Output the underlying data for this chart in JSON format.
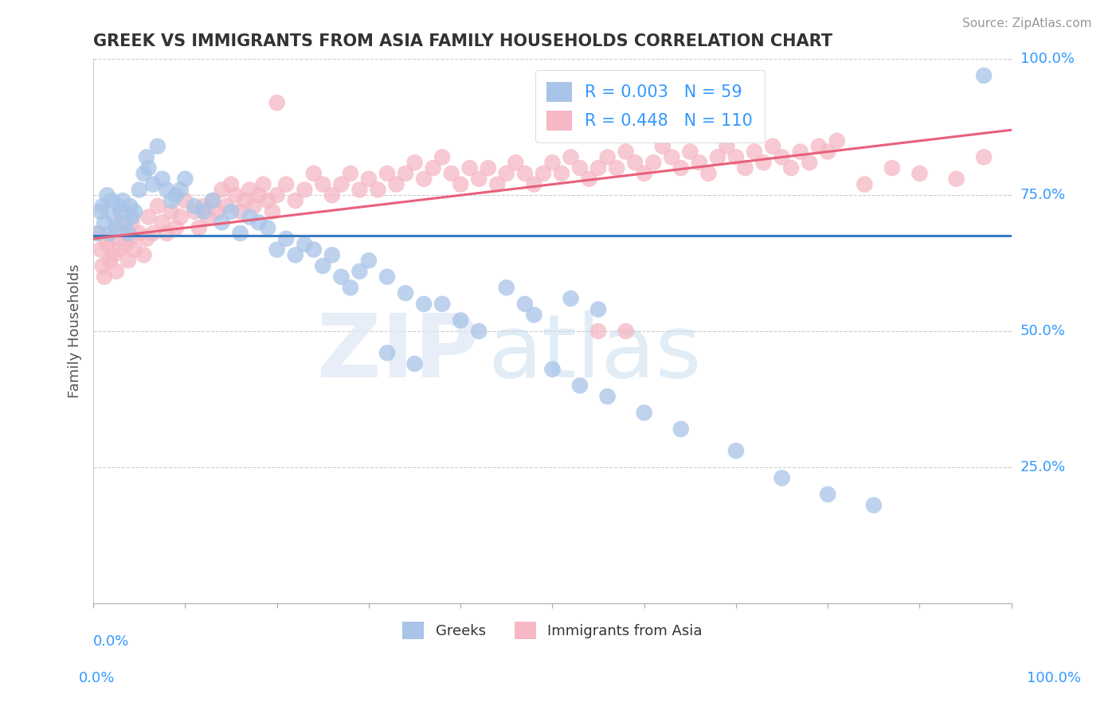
{
  "title": "GREEK VS IMMIGRANTS FROM ASIA FAMILY HOUSEHOLDS CORRELATION CHART",
  "source": "Source: ZipAtlas.com",
  "ylabel": "Family Households",
  "xlim": [
    0.0,
    1.0
  ],
  "ylim": [
    0.0,
    1.0
  ],
  "yticks": [
    0.25,
    0.5,
    0.75,
    1.0
  ],
  "ytick_labels": [
    "25.0%",
    "50.0%",
    "75.0%",
    "100.0%"
  ],
  "blue_color": "#a8c4e8",
  "pink_color": "#f5b8c4",
  "line_blue": "#3a7abf",
  "line_pink": "#e8607a",
  "title_color": "#333333",
  "source_color": "#999999",
  "axis_label_color": "#3399ff",
  "background_color": "#ffffff",
  "grid_color": "#cccccc",
  "blue_scatter": [
    [
      0.005,
      0.68
    ],
    [
      0.008,
      0.72
    ],
    [
      0.01,
      0.73
    ],
    [
      0.012,
      0.7
    ],
    [
      0.015,
      0.75
    ],
    [
      0.018,
      0.68
    ],
    [
      0.02,
      0.74
    ],
    [
      0.022,
      0.71
    ],
    [
      0.025,
      0.69
    ],
    [
      0.028,
      0.73
    ],
    [
      0.03,
      0.72
    ],
    [
      0.032,
      0.74
    ],
    [
      0.035,
      0.7
    ],
    [
      0.038,
      0.68
    ],
    [
      0.04,
      0.73
    ],
    [
      0.042,
      0.71
    ],
    [
      0.045,
      0.72
    ],
    [
      0.05,
      0.76
    ],
    [
      0.055,
      0.79
    ],
    [
      0.058,
      0.82
    ],
    [
      0.06,
      0.8
    ],
    [
      0.065,
      0.77
    ],
    [
      0.07,
      0.84
    ],
    [
      0.075,
      0.78
    ],
    [
      0.08,
      0.76
    ],
    [
      0.085,
      0.74
    ],
    [
      0.09,
      0.75
    ],
    [
      0.095,
      0.76
    ],
    [
      0.1,
      0.78
    ],
    [
      0.11,
      0.73
    ],
    [
      0.12,
      0.72
    ],
    [
      0.13,
      0.74
    ],
    [
      0.14,
      0.7
    ],
    [
      0.15,
      0.72
    ],
    [
      0.16,
      0.68
    ],
    [
      0.17,
      0.71
    ],
    [
      0.18,
      0.7
    ],
    [
      0.19,
      0.69
    ],
    [
      0.2,
      0.65
    ],
    [
      0.21,
      0.67
    ],
    [
      0.22,
      0.64
    ],
    [
      0.23,
      0.66
    ],
    [
      0.24,
      0.65
    ],
    [
      0.25,
      0.62
    ],
    [
      0.26,
      0.64
    ],
    [
      0.27,
      0.6
    ],
    [
      0.28,
      0.58
    ],
    [
      0.29,
      0.61
    ],
    [
      0.3,
      0.63
    ],
    [
      0.32,
      0.6
    ],
    [
      0.34,
      0.57
    ],
    [
      0.36,
      0.55
    ],
    [
      0.38,
      0.55
    ],
    [
      0.4,
      0.52
    ],
    [
      0.42,
      0.5
    ],
    [
      0.45,
      0.58
    ],
    [
      0.47,
      0.55
    ],
    [
      0.5,
      0.43
    ],
    [
      0.53,
      0.4
    ],
    [
      0.56,
      0.38
    ],
    [
      0.6,
      0.35
    ],
    [
      0.64,
      0.32
    ],
    [
      0.7,
      0.28
    ],
    [
      0.75,
      0.23
    ],
    [
      0.8,
      0.2
    ],
    [
      0.85,
      0.18
    ],
    [
      0.52,
      0.56
    ],
    [
      0.55,
      0.54
    ],
    [
      0.48,
      0.53
    ],
    [
      0.32,
      0.46
    ],
    [
      0.35,
      0.44
    ],
    [
      0.97,
      0.97
    ]
  ],
  "pink_scatter": [
    [
      0.005,
      0.68
    ],
    [
      0.008,
      0.65
    ],
    [
      0.01,
      0.62
    ],
    [
      0.012,
      0.6
    ],
    [
      0.015,
      0.66
    ],
    [
      0.018,
      0.63
    ],
    [
      0.02,
      0.67
    ],
    [
      0.022,
      0.64
    ],
    [
      0.025,
      0.61
    ],
    [
      0.028,
      0.65
    ],
    [
      0.03,
      0.7
    ],
    [
      0.032,
      0.68
    ],
    [
      0.035,
      0.66
    ],
    [
      0.038,
      0.63
    ],
    [
      0.04,
      0.67
    ],
    [
      0.042,
      0.7
    ],
    [
      0.045,
      0.65
    ],
    [
      0.05,
      0.68
    ],
    [
      0.055,
      0.64
    ],
    [
      0.058,
      0.67
    ],
    [
      0.06,
      0.71
    ],
    [
      0.065,
      0.68
    ],
    [
      0.07,
      0.73
    ],
    [
      0.075,
      0.7
    ],
    [
      0.08,
      0.68
    ],
    [
      0.085,
      0.72
    ],
    [
      0.09,
      0.69
    ],
    [
      0.095,
      0.71
    ],
    [
      0.1,
      0.74
    ],
    [
      0.11,
      0.72
    ],
    [
      0.115,
      0.69
    ],
    [
      0.12,
      0.73
    ],
    [
      0.125,
      0.71
    ],
    [
      0.13,
      0.74
    ],
    [
      0.135,
      0.72
    ],
    [
      0.14,
      0.76
    ],
    [
      0.145,
      0.73
    ],
    [
      0.15,
      0.77
    ],
    [
      0.155,
      0.75
    ],
    [
      0.16,
      0.72
    ],
    [
      0.165,
      0.74
    ],
    [
      0.17,
      0.76
    ],
    [
      0.175,
      0.73
    ],
    [
      0.18,
      0.75
    ],
    [
      0.185,
      0.77
    ],
    [
      0.19,
      0.74
    ],
    [
      0.195,
      0.72
    ],
    [
      0.2,
      0.75
    ],
    [
      0.21,
      0.77
    ],
    [
      0.22,
      0.74
    ],
    [
      0.23,
      0.76
    ],
    [
      0.24,
      0.79
    ],
    [
      0.25,
      0.77
    ],
    [
      0.26,
      0.75
    ],
    [
      0.27,
      0.77
    ],
    [
      0.28,
      0.79
    ],
    [
      0.29,
      0.76
    ],
    [
      0.3,
      0.78
    ],
    [
      0.31,
      0.76
    ],
    [
      0.32,
      0.79
    ],
    [
      0.33,
      0.77
    ],
    [
      0.34,
      0.79
    ],
    [
      0.35,
      0.81
    ],
    [
      0.36,
      0.78
    ],
    [
      0.37,
      0.8
    ],
    [
      0.38,
      0.82
    ],
    [
      0.39,
      0.79
    ],
    [
      0.4,
      0.77
    ],
    [
      0.41,
      0.8
    ],
    [
      0.42,
      0.78
    ],
    [
      0.43,
      0.8
    ],
    [
      0.44,
      0.77
    ],
    [
      0.45,
      0.79
    ],
    [
      0.46,
      0.81
    ],
    [
      0.47,
      0.79
    ],
    [
      0.48,
      0.77
    ],
    [
      0.49,
      0.79
    ],
    [
      0.5,
      0.81
    ],
    [
      0.51,
      0.79
    ],
    [
      0.52,
      0.82
    ],
    [
      0.53,
      0.8
    ],
    [
      0.54,
      0.78
    ],
    [
      0.55,
      0.8
    ],
    [
      0.56,
      0.82
    ],
    [
      0.57,
      0.8
    ],
    [
      0.58,
      0.83
    ],
    [
      0.59,
      0.81
    ],
    [
      0.6,
      0.79
    ],
    [
      0.61,
      0.81
    ],
    [
      0.62,
      0.84
    ],
    [
      0.63,
      0.82
    ],
    [
      0.64,
      0.8
    ],
    [
      0.65,
      0.83
    ],
    [
      0.66,
      0.81
    ],
    [
      0.67,
      0.79
    ],
    [
      0.68,
      0.82
    ],
    [
      0.69,
      0.84
    ],
    [
      0.7,
      0.82
    ],
    [
      0.71,
      0.8
    ],
    [
      0.72,
      0.83
    ],
    [
      0.73,
      0.81
    ],
    [
      0.74,
      0.84
    ],
    [
      0.75,
      0.82
    ],
    [
      0.76,
      0.8
    ],
    [
      0.77,
      0.83
    ],
    [
      0.78,
      0.81
    ],
    [
      0.79,
      0.84
    ],
    [
      0.8,
      0.83
    ],
    [
      0.81,
      0.85
    ],
    [
      0.2,
      0.92
    ],
    [
      0.55,
      0.5
    ],
    [
      0.58,
      0.5
    ],
    [
      0.84,
      0.77
    ],
    [
      0.87,
      0.8
    ],
    [
      0.9,
      0.79
    ],
    [
      0.94,
      0.78
    ],
    [
      0.97,
      0.82
    ]
  ]
}
